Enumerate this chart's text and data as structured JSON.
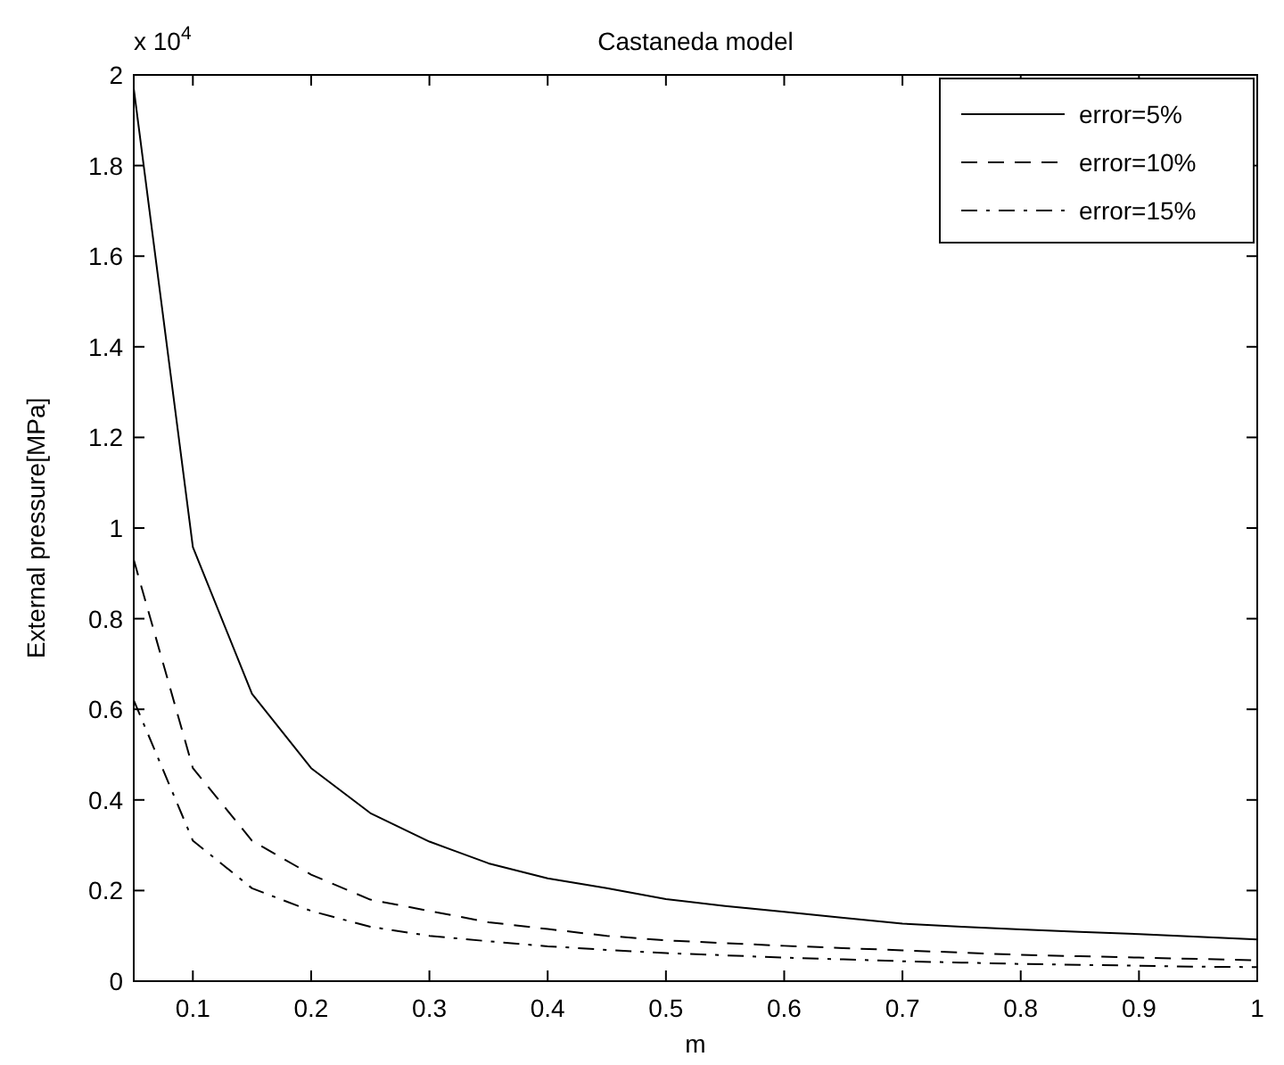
{
  "chart_data": {
    "type": "line",
    "title": "Castaneda model",
    "xlabel": "m",
    "ylabel": "External pressure[MPa]",
    "annotations": [
      "x 10$^{4}$"
    ],
    "x": [
      0.05,
      0.1,
      0.15,
      0.2,
      0.25,
      0.3,
      0.35,
      0.4,
      0.45,
      0.5,
      0.55,
      0.6,
      0.65,
      0.7,
      0.75,
      0.8,
      0.85,
      0.9,
      0.95,
      1.0
    ],
    "series": [
      {
        "name": "error=5%",
        "color": "#000000",
        "line_style": "solid",
        "values": [
          1.97,
          0.958,
          0.634,
          0.47,
          0.371,
          0.308,
          0.26,
          0.227,
          0.205,
          0.181,
          0.166,
          0.153,
          0.14,
          0.127,
          0.12,
          0.114,
          0.109,
          0.104,
          0.098,
          0.092
        ]
      },
      {
        "name": "error=10%",
        "color": "#000000",
        "line_style": "dashed",
        "values": [
          0.93,
          0.47,
          0.31,
          0.235,
          0.18,
          0.155,
          0.13,
          0.115,
          0.1,
          0.09,
          0.084,
          0.078,
          0.073,
          0.068,
          0.063,
          0.058,
          0.055,
          0.052,
          0.049,
          0.046
        ]
      },
      {
        "name": "error=15%",
        "color": "#000000",
        "line_style": "dashdot",
        "values": [
          0.62,
          0.31,
          0.205,
          0.155,
          0.12,
          0.1,
          0.088,
          0.077,
          0.069,
          0.062,
          0.057,
          0.052,
          0.048,
          0.044,
          0.041,
          0.038,
          0.036,
          0.034,
          0.032,
          0.031
        ]
      }
    ],
    "xlim": [
      0.05,
      1
    ],
    "ylim": [
      0,
      2
    ],
    "xticks": [
      0.1,
      0.2,
      0.3,
      0.4,
      0.5,
      0.6,
      0.7,
      0.8,
      0.9,
      1
    ],
    "yticks": [
      0,
      0.2,
      0.4,
      0.6,
      0.8,
      1,
      1.2,
      1.4,
      1.6,
      1.8,
      2
    ],
    "legend": "top right",
    "grid": false
  }
}
